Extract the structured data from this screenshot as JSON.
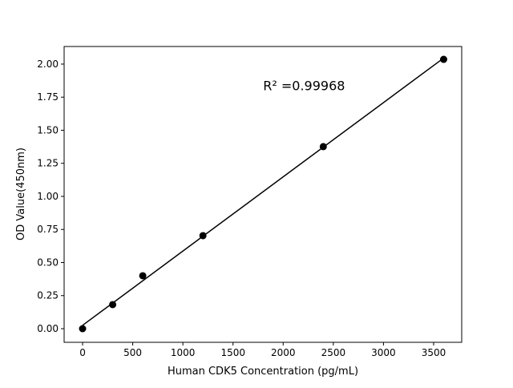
{
  "chart_data": {
    "type": "scatter",
    "title": "",
    "xlabel": "Human CDK5 Concentration (pg/mL)",
    "ylabel": "OD Value(450nm)",
    "xlim": [
      -184,
      3780
    ],
    "ylim": [
      -0.103,
      2.133
    ],
    "xticks": [
      0,
      500,
      1000,
      1500,
      2000,
      2500,
      3000,
      3500
    ],
    "xtick_labels": [
      "0",
      "500",
      "1000",
      "1500",
      "2000",
      "2500",
      "3000",
      "3500"
    ],
    "yticks": [
      0,
      0.25,
      0.5,
      0.75,
      1.0,
      1.25,
      1.5,
      1.75,
      2.0
    ],
    "ytick_labels": [
      "0.00",
      "0.25",
      "0.50",
      "0.75",
      "1.00",
      "1.25",
      "1.50",
      "1.75",
      "2.00"
    ],
    "points": {
      "x": [
        0,
        300,
        600,
        1200,
        2400,
        3600
      ],
      "y": [
        0.0,
        0.182,
        0.4,
        0.703,
        1.376,
        2.036
      ]
    },
    "fit_line": true,
    "grid": false,
    "annotation": {
      "text": "R² =0.99968",
      "x": 1800,
      "y": 1.84
    },
    "colors": {
      "points": "#000000",
      "line": "#000000"
    }
  }
}
